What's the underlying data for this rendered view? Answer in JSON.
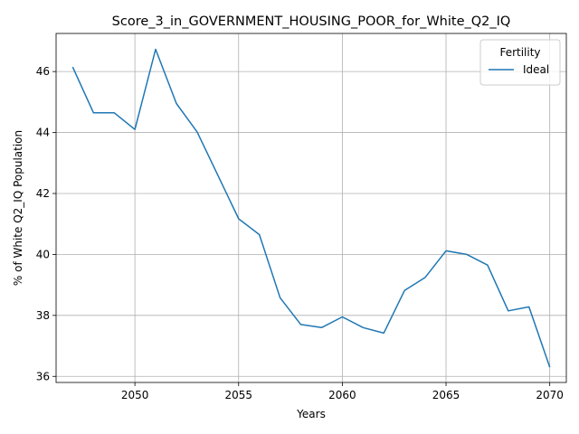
{
  "chart_data": {
    "type": "line",
    "title": "Score_3_in_GOVERNMENT_HOUSING_POOR_for_White_Q2_IQ",
    "xlabel": "Years",
    "ylabel": "% of White Q2_IQ Population",
    "xlim": [
      2046.2,
      2070.8
    ],
    "ylim": [
      35.8,
      47.25
    ],
    "x_ticks": [
      2050,
      2055,
      2060,
      2065,
      2070
    ],
    "y_ticks": [
      36,
      38,
      40,
      42,
      44,
      46
    ],
    "grid": true,
    "legend": {
      "title": "Fertility",
      "position": "top-right"
    },
    "series": [
      {
        "name": "Ideal",
        "color": "#1f77b4",
        "x": [
          2047,
          2048,
          2049,
          2050,
          2051,
          2052,
          2053,
          2054,
          2055,
          2056,
          2057,
          2058,
          2059,
          2060,
          2061,
          2062,
          2063,
          2064,
          2065,
          2066,
          2067,
          2068,
          2069,
          2070
        ],
        "y": [
          46.15,
          44.65,
          44.65,
          44.1,
          46.73,
          44.95,
          44.02,
          42.6,
          41.17,
          40.65,
          38.58,
          37.7,
          37.6,
          37.95,
          37.6,
          37.42,
          38.82,
          39.25,
          40.12,
          40.0,
          39.65,
          38.15,
          38.28,
          36.3
        ]
      }
    ]
  }
}
